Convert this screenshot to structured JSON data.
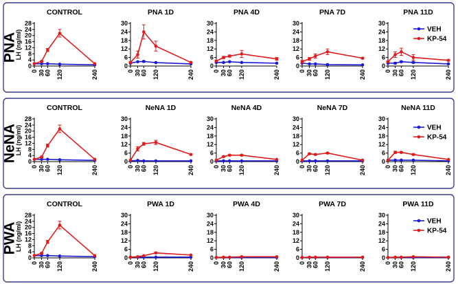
{
  "chart_data": {
    "type": "line",
    "x_ticks": [
      0,
      30,
      60,
      120,
      240
    ],
    "ylim": [
      0,
      30
    ],
    "y_ticks": [
      0,
      6,
      12,
      18,
      24,
      30
    ],
    "y_ticks_control": [
      0,
      4,
      8,
      12,
      16,
      20,
      24,
      28
    ],
    "ylim_control": [
      0,
      28
    ],
    "ylabel": "LH (ng/ml)",
    "legend": [
      {
        "name": "VEH",
        "color": "#1a1adb"
      },
      {
        "name": "KP-54",
        "color": "#e01b1b"
      }
    ],
    "rows": [
      {
        "label": "PNA",
        "panels": [
          {
            "title": "CONTROL",
            "series": [
              {
                "name": "VEH",
                "values": [
                  1.5,
                  1.5,
                  1.5,
                  1.2,
                  0.8
                ],
                "errors": [
                  0.3,
                  0.3,
                  0.3,
                  0.3,
                  0.2
                ]
              },
              {
                "name": "KP-54",
                "values": [
                  1.5,
                  3.0,
                  10.5,
                  21.5,
                  1.5
                ],
                "errors": [
                  0.3,
                  0.5,
                  1.0,
                  2.5,
                  0.3
                ]
              }
            ]
          },
          {
            "title": "PNA 1D",
            "series": [
              {
                "name": "VEH",
                "values": [
                  2.0,
                  3.0,
                  3.2,
                  2.4,
                  1.5
                ],
                "errors": [
                  0.3,
                  0.4,
                  0.5,
                  0.3,
                  0.3
                ]
              },
              {
                "name": "KP-54",
                "values": [
                  2.5,
                  8.0,
                  24.0,
                  14.0,
                  2.5
                ],
                "errors": [
                  0.5,
                  2.5,
                  5.0,
                  3.5,
                  0.5
                ]
              }
            ]
          },
          {
            "title": "PNA 4D",
            "series": [
              {
                "name": "VEH",
                "values": [
                  2.5,
                  2.5,
                  3.0,
                  2.5,
                  2.0
                ],
                "errors": [
                  0.3,
                  0.3,
                  0.3,
                  0.3,
                  0.3
                ]
              },
              {
                "name": "KP-54",
                "values": [
                  3.5,
                  6.0,
                  7.0,
                  8.5,
                  5.0
                ],
                "errors": [
                  0.5,
                  0.8,
                  0.8,
                  2.5,
                  1.0
                ]
              }
            ]
          },
          {
            "title": "PNA 7D",
            "series": [
              {
                "name": "VEH",
                "values": [
                  2.0,
                  1.5,
                  1.5,
                  1.0,
                  0.8
                ],
                "errors": [
                  0.3,
                  0.3,
                  0.3,
                  0.2,
                  0.2
                ]
              },
              {
                "name": "KP-54",
                "values": [
                  3.0,
                  5.0,
                  7.0,
                  10.0,
                  5.5
                ],
                "errors": [
                  1.0,
                  1.0,
                  1.5,
                  2.0,
                  0.5
                ]
              }
            ]
          },
          {
            "title": "PNA 11D",
            "series": [
              {
                "name": "VEH",
                "values": [
                  2.0,
                  2.0,
                  3.0,
                  2.5,
                  1.5
                ],
                "errors": [
                  0.3,
                  0.5,
                  0.5,
                  0.5,
                  0.3
                ]
              },
              {
                "name": "KP-54",
                "values": [
                  3.0,
                  8.0,
                  10.0,
                  6.0,
                  4.0
                ],
                "errors": [
                  0.5,
                  2.0,
                  2.5,
                  2.0,
                  0.5
                ]
              }
            ]
          }
        ]
      },
      {
        "label": "NeNA",
        "panels": [
          {
            "title": "CONTROL",
            "series": [
              {
                "name": "VEH",
                "values": [
                  1.5,
                  1.5,
                  1.5,
                  1.2,
                  0.8
                ],
                "errors": [
                  0.3,
                  0.3,
                  0.3,
                  0.3,
                  0.2
                ]
              },
              {
                "name": "KP-54",
                "values": [
                  1.5,
                  3.0,
                  10.5,
                  21.5,
                  1.5
                ],
                "errors": [
                  0.3,
                  0.5,
                  1.0,
                  2.5,
                  0.3
                ]
              }
            ]
          },
          {
            "title": "NeNA 1D",
            "series": [
              {
                "name": "VEH",
                "values": [
                  0.5,
                  0.8,
                  0.5,
                  0.5,
                  0.5
                ],
                "errors": [
                  0.2,
                  0.2,
                  0.2,
                  0.2,
                  0.2
                ]
              },
              {
                "name": "KP-54",
                "values": [
                  1.0,
                  9.0,
                  12.5,
                  13.5,
                  5.0
                ],
                "errors": [
                  0.3,
                  1.5,
                  1.0,
                  1.5,
                  0.5
                ]
              }
            ]
          },
          {
            "title": "NeNA 4D",
            "series": [
              {
                "name": "VEH",
                "values": [
                  0.5,
                  0.5,
                  0.5,
                  0.5,
                  0.5
                ],
                "errors": [
                  0.2,
                  0.2,
                  0.2,
                  0.2,
                  0.2
                ]
              },
              {
                "name": "KP-54",
                "values": [
                  1.0,
                  3.5,
                  4.5,
                  4.5,
                  1.5
                ],
                "errors": [
                  0.3,
                  0.5,
                  0.5,
                  0.5,
                  0.3
                ]
              }
            ]
          },
          {
            "title": "NeNA 7D",
            "series": [
              {
                "name": "VEH",
                "values": [
                  0.5,
                  0.5,
                  0.5,
                  0.5,
                  0.5
                ],
                "errors": [
                  0.2,
                  0.2,
                  0.2,
                  0.2,
                  0.2
                ]
              },
              {
                "name": "KP-54",
                "values": [
                  1.0,
                  5.5,
                  5.0,
                  6.0,
                  1.0
                ],
                "errors": [
                  0.3,
                  0.5,
                  0.5,
                  0.5,
                  0.3
                ]
              }
            ]
          },
          {
            "title": "NeNA 11D",
            "series": [
              {
                "name": "VEH",
                "values": [
                  1.0,
                  1.0,
                  1.0,
                  1.0,
                  0.5
                ],
                "errors": [
                  0.2,
                  0.2,
                  0.2,
                  0.2,
                  0.2
                ]
              },
              {
                "name": "KP-54",
                "values": [
                  1.0,
                  6.5,
                  6.5,
                  5.0,
                  1.5
                ],
                "errors": [
                  0.3,
                  0.8,
                  0.5,
                  0.5,
                  0.3
                ]
              }
            ]
          }
        ]
      },
      {
        "label": "PWA",
        "panels": [
          {
            "title": "CONTROL",
            "series": [
              {
                "name": "VEH",
                "values": [
                  1.5,
                  1.5,
                  1.5,
                  1.2,
                  0.8
                ],
                "errors": [
                  0.3,
                  0.3,
                  0.3,
                  0.3,
                  0.2
                ]
              },
              {
                "name": "KP-54",
                "values": [
                  1.5,
                  3.0,
                  10.5,
                  21.5,
                  1.5
                ],
                "errors": [
                  0.3,
                  0.5,
                  1.0,
                  2.5,
                  0.3
                ]
              }
            ]
          },
          {
            "title": "PWA 1D",
            "series": [
              {
                "name": "VEH",
                "values": [
                  0.5,
                  0.5,
                  0.5,
                  0.5,
                  0.5
                ],
                "errors": [
                  0.2,
                  0.2,
                  0.2,
                  0.2,
                  0.2
                ]
              },
              {
                "name": "KP-54",
                "values": [
                  0.5,
                  0.8,
                  1.5,
                  3.5,
                  2.0
                ],
                "errors": [
                  0.2,
                  0.2,
                  0.3,
                  0.5,
                  0.3
                ]
              }
            ]
          },
          {
            "title": "PWA 4D",
            "series": [
              {
                "name": "VEH",
                "values": [
                  0.3,
                  0.3,
                  0.3,
                  0.3,
                  0.3
                ],
                "errors": [
                  0.1,
                  0.1,
                  0.1,
                  0.1,
                  0.1
                ]
              },
              {
                "name": "KP-54",
                "values": [
                  0.3,
                  0.5,
                  0.5,
                  0.8,
                  0.8
                ],
                "errors": [
                  0.1,
                  0.1,
                  0.1,
                  0.2,
                  0.2
                ]
              }
            ]
          },
          {
            "title": "PWA 7D",
            "series": [
              {
                "name": "VEH",
                "values": [
                  0.3,
                  0.3,
                  0.3,
                  0.3,
                  0.3
                ],
                "errors": [
                  0.1,
                  0.1,
                  0.1,
                  0.1,
                  0.1
                ]
              },
              {
                "name": "KP-54",
                "values": [
                  0.3,
                  0.5,
                  0.5,
                  0.5,
                  0.5
                ],
                "errors": [
                  0.1,
                  0.1,
                  0.1,
                  0.1,
                  0.1
                ]
              }
            ]
          },
          {
            "title": "PWA 11D",
            "series": [
              {
                "name": "VEH",
                "values": [
                  0.3,
                  0.3,
                  0.3,
                  0.3,
                  0.3
                ],
                "errors": [
                  0.1,
                  0.1,
                  0.1,
                  0.1,
                  0.1
                ]
              },
              {
                "name": "KP-54",
                "values": [
                  0.3,
                  0.5,
                  0.5,
                  0.8,
                  0.5
                ],
                "errors": [
                  0.1,
                  0.1,
                  0.1,
                  0.2,
                  0.1
                ]
              }
            ]
          }
        ]
      }
    ]
  }
}
